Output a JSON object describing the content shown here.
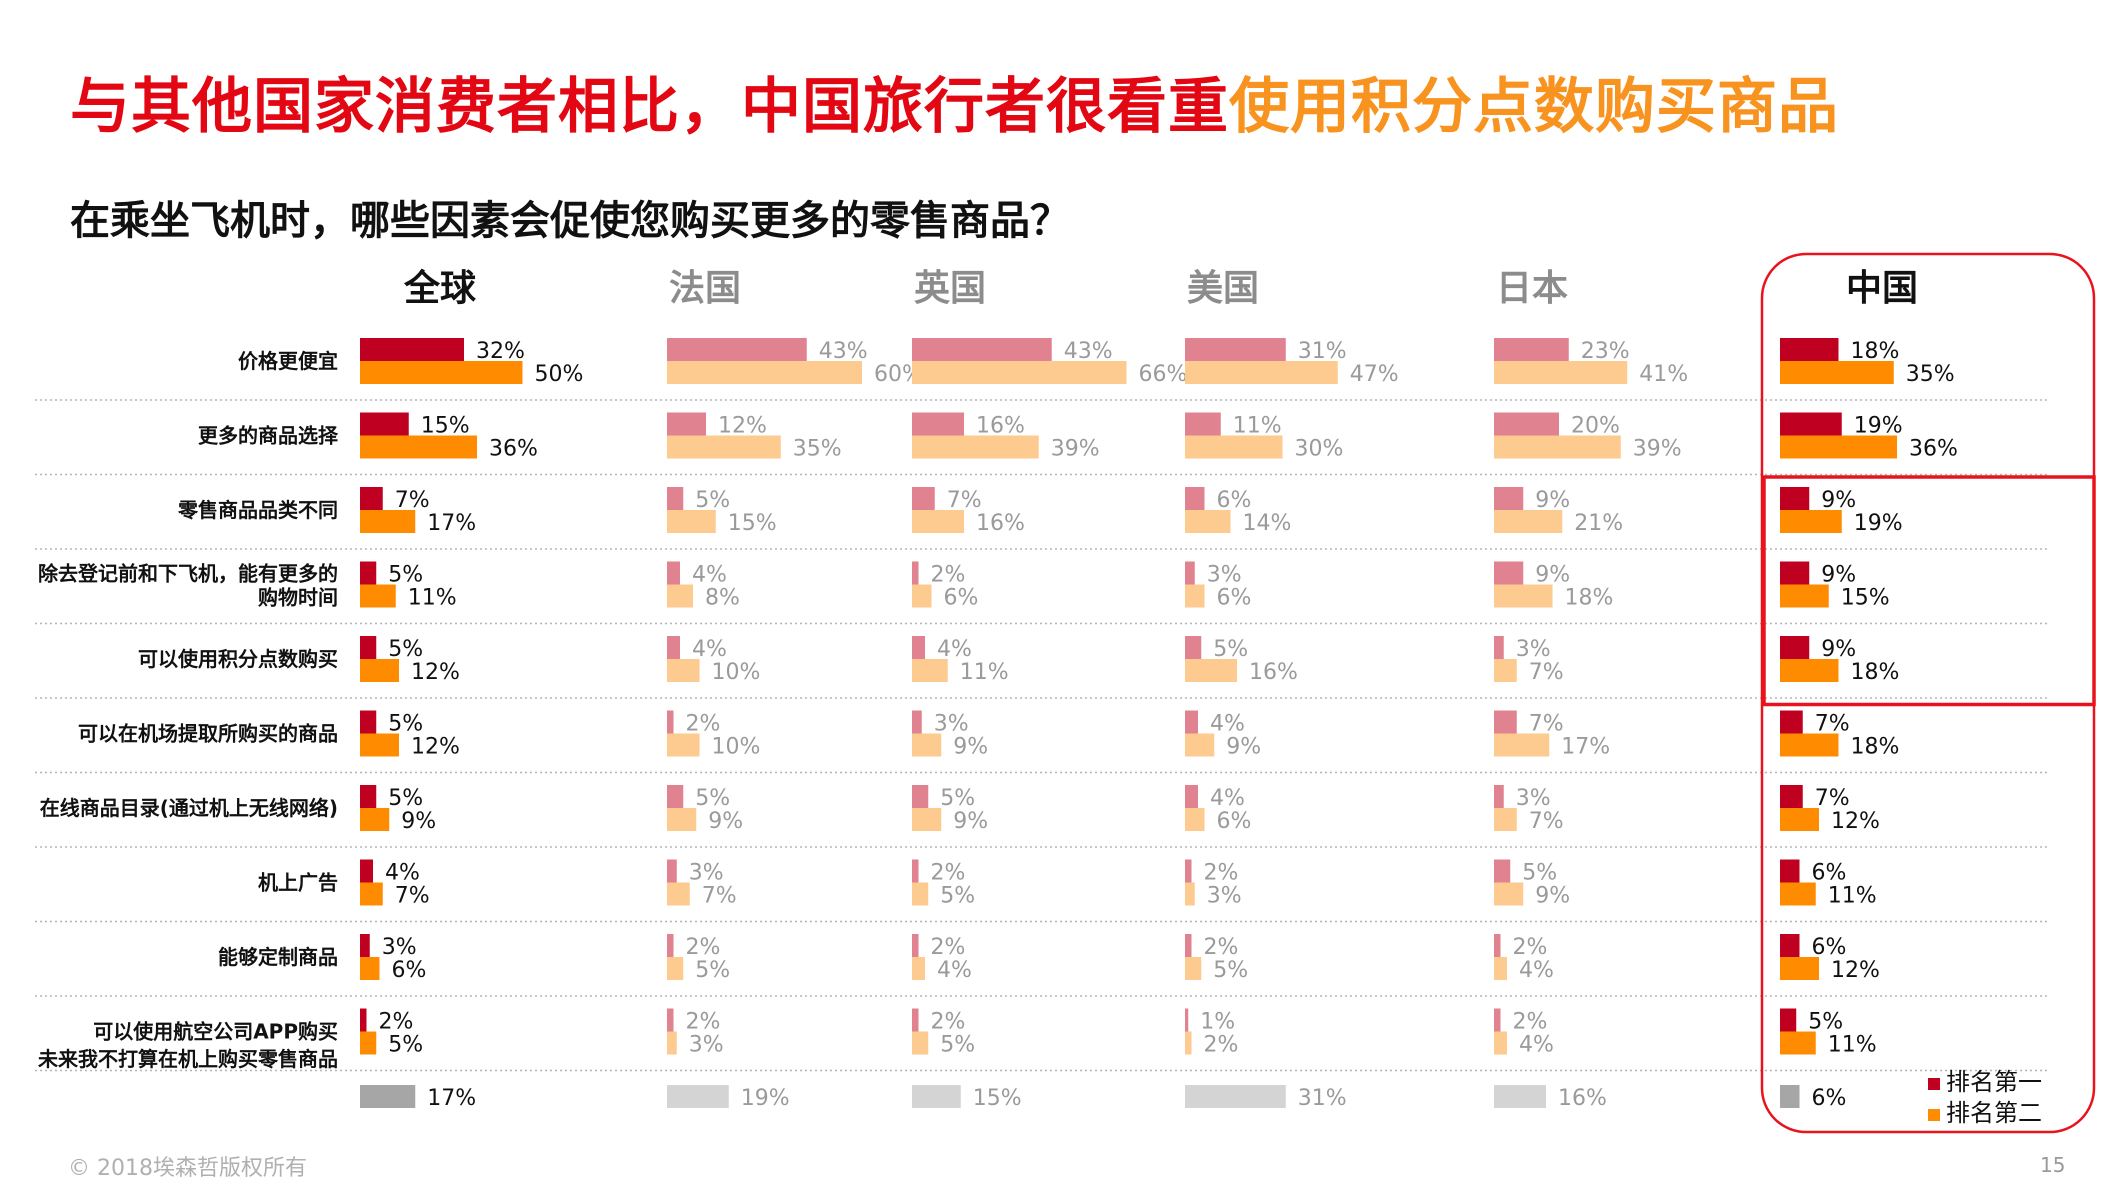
{
  "title": {
    "main": "与其他国家消费者相比，中国旅行者很看重",
    "highlight": "使用积分点数购买商品"
  },
  "question": "在乘坐飞机时，哪些因素会促使您购买更多的零售商品？",
  "footer": {
    "copyright": "© 2018埃森哲版权所有",
    "page": "15"
  },
  "colors": {
    "title": "#e30613",
    "title_highlight": "#f7931e",
    "rank1": "#c00020",
    "rank2": "#ff8c00",
    "rank1_faded": "#e0828f",
    "rank2_faded": "#fdca8f",
    "none_gray": "#a6a6a6",
    "none_gray_faded": "#d4d4d4",
    "highlight_frame": "#e8131d"
  },
  "chart_data": {
    "type": "bar",
    "orientation": "horizontal",
    "categories": [
      "价格更便宜",
      "更多的商品选择",
      "零售商品品类不同",
      "除去登记前和下飞机，能有更多的购物时间",
      "可以使用积分点数购买",
      "可以在机场提取所购买的商品",
      "在线商品目录(通过机上无线网络)",
      "机上广告",
      "能够定制商品",
      "可以使用航空公司APP购买"
    ],
    "extra_category": "未来我不打算在机上购买零售商品",
    "legend": [
      "排名第一",
      "排名第二"
    ],
    "legend_position": "bottom-right",
    "panels": [
      {
        "name": "全球",
        "emphasis": true,
        "rank1": [
          32,
          15,
          7,
          5,
          5,
          5,
          5,
          4,
          3,
          2
        ],
        "rank2": [
          50,
          36,
          17,
          11,
          12,
          12,
          9,
          7,
          6,
          5
        ],
        "none": 17
      },
      {
        "name": "法国",
        "emphasis": false,
        "rank1": [
          43,
          12,
          5,
          4,
          4,
          2,
          5,
          3,
          2,
          2
        ],
        "rank2": [
          60,
          35,
          15,
          8,
          10,
          10,
          9,
          7,
          5,
          3
        ],
        "none": 19
      },
      {
        "name": "英国",
        "emphasis": false,
        "rank1": [
          43,
          16,
          7,
          2,
          4,
          3,
          5,
          2,
          2,
          2
        ],
        "rank2": [
          66,
          39,
          16,
          6,
          11,
          9,
          9,
          5,
          4,
          5
        ],
        "none": 15
      },
      {
        "name": "美国",
        "emphasis": false,
        "rank1": [
          31,
          11,
          6,
          3,
          5,
          4,
          4,
          2,
          2,
          1
        ],
        "rank2": [
          47,
          30,
          14,
          6,
          16,
          9,
          6,
          3,
          5,
          2
        ],
        "none": 31
      },
      {
        "name": "日本",
        "emphasis": false,
        "rank1": [
          23,
          20,
          9,
          9,
          3,
          7,
          3,
          5,
          2,
          2
        ],
        "rank2": [
          41,
          39,
          21,
          18,
          7,
          17,
          7,
          9,
          4,
          4
        ],
        "none": 16
      },
      {
        "name": "中国",
        "emphasis": true,
        "rank1": [
          18,
          19,
          9,
          9,
          9,
          7,
          7,
          6,
          6,
          5
        ],
        "rank2": [
          35,
          36,
          19,
          15,
          18,
          18,
          12,
          11,
          12,
          11
        ],
        "none": 6
      }
    ],
    "highlighted_rows": [
      "零售商品品类不同",
      "除去登记前和下飞机，能有更多的购物时间",
      "可以使用积分点数购买"
    ],
    "highlighted_panel": "中国"
  }
}
